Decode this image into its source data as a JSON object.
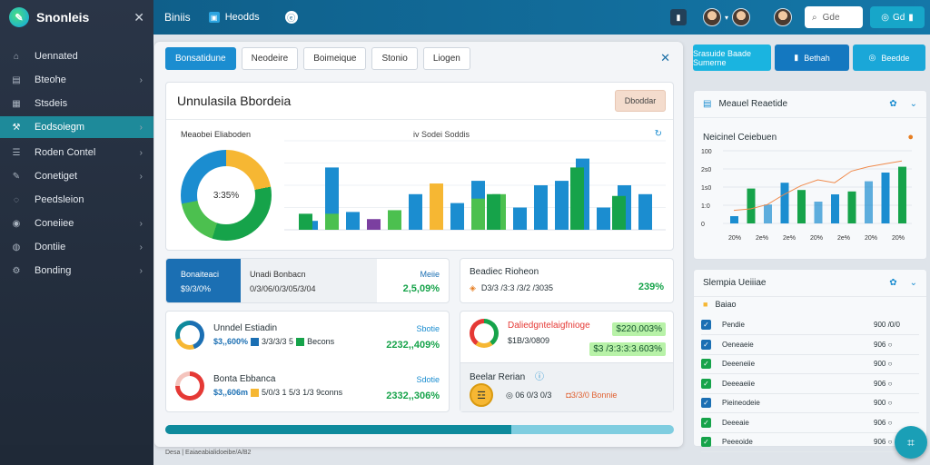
{
  "app": {
    "name": "Snonleis",
    "close": "✕",
    "logo": "✎"
  },
  "sidebar": {
    "items": [
      {
        "label": "Uennated",
        "icon": "home-icon",
        "glyph": "⌂",
        "chev": ""
      },
      {
        "label": "Bteohe",
        "icon": "layers-icon",
        "glyph": "▤",
        "chev": "›"
      },
      {
        "label": "Stsdeis",
        "icon": "grid-icon",
        "glyph": "▦",
        "chev": ""
      },
      {
        "label": "Eodsoiegm",
        "icon": "analytics-icon",
        "glyph": "⚒",
        "chev": "›"
      },
      {
        "label": "Roden Contel",
        "icon": "list-icon",
        "glyph": "☰",
        "chev": "›"
      },
      {
        "label": "Conetiget",
        "icon": "tag-icon",
        "glyph": "✎",
        "chev": "›"
      },
      {
        "label": "Peedsleion",
        "icon": "chat-icon",
        "glyph": "◌",
        "chev": ""
      },
      {
        "label": "Coneiiee",
        "icon": "target-icon",
        "glyph": "◉",
        "chev": "›"
      },
      {
        "label": "Dontiie",
        "icon": "globe-icon",
        "glyph": "◍",
        "chev": "›"
      },
      {
        "label": "Bonding",
        "icon": "gear-icon",
        "glyph": "⚙",
        "chev": "›"
      }
    ]
  },
  "topbar": {
    "title": "Biniis",
    "tab": "Heodds",
    "dot": "ⓔ",
    "search": "Gde",
    "search_glyph": "⌕",
    "btn": "Gd",
    "btn_glyph": "◎",
    "bell": "▮"
  },
  "main": {
    "tabs": [
      "Bonsatidune",
      "Neodeire",
      "Boimeique",
      "Stonio",
      "Liogen"
    ],
    "close": "✕",
    "chart_title": "Unnulasila Bbordeia",
    "chart_button": "Dboddar",
    "chart_sub": "Meaobei Eliaboden",
    "legend": "iv   Sodei   Soddis",
    "refresh": "↻",
    "donut_center": "3:35%",
    "chart_data": {
      "type": "bar",
      "series": [
        {
          "color": "#1b8dd0",
          "values": [
            10,
            70,
            20,
            0,
            5,
            40,
            0,
            30,
            55,
            30,
            25,
            50,
            55,
            80,
            25,
            50,
            40
          ]
        },
        {
          "color": "#4cc04f",
          "values": [
            0,
            18,
            0,
            0,
            22,
            0,
            0,
            0,
            35,
            40,
            0,
            0,
            0,
            0,
            0,
            0,
            0
          ]
        },
        {
          "color": "#f6b733",
          "values": [
            0,
            0,
            0,
            0,
            0,
            0,
            52,
            0,
            0,
            0,
            0,
            0,
            0,
            0,
            0,
            0,
            0
          ]
        },
        {
          "color": "#7b3fa0",
          "values": [
            0,
            0,
            0,
            12,
            0,
            0,
            0,
            0,
            0,
            0,
            0,
            0,
            0,
            0,
            0,
            0,
            0
          ]
        },
        {
          "color": "#16a34a",
          "values": [
            18,
            0,
            0,
            0,
            0,
            0,
            0,
            0,
            0,
            40,
            0,
            0,
            0,
            70,
            0,
            38,
            0
          ]
        }
      ],
      "ylim": [
        0,
        100
      ]
    },
    "stat1": {
      "head": "Bonaiteaci",
      "val": "$9/3/0%",
      "mid_head": "Unadi Bonbacn",
      "mid_val": "0/3/06/0/3/05/3/04",
      "r_head": "Meiie",
      "r_val": "2,5,09%"
    },
    "stat2": {
      "head": "Beadiec Rioheon",
      "glyph": "◈",
      "val": "D3/3 /3:3 /3/2 /3035",
      "pct": "239%"
    },
    "stat3": {
      "a_title": "Unndel Estiadin",
      "a_val": "$3,,600%",
      "a_mid": "3/3/3/3 5",
      "a_mid2": "Becons",
      "a_rhead": "Sbotie",
      "a_r": "2232,,409%",
      "b_title": "Bonta Ebbanca",
      "b_val": "$3,,606m",
      "b_mid": "5/0/3 1 5/3 1/3 9conns",
      "b_rhead": "Sdotie",
      "b_r": "2332,,306%"
    },
    "stat4": {
      "a_title": "Daliedgntelaigfnioge",
      "a_val": "$1B/3/0809",
      "a_hl": "$220,003%",
      "a_hl2": "$3 /3:3:3:3.603%",
      "b_title": "Beelar Rerian",
      "b_info": "ⓘ",
      "b_coin": "☲",
      "b_v1": "◎ 06 0/3 0/3",
      "b_v2": "◘3/3/0 Bonnie"
    },
    "progress": 0.68,
    "status": "Desa | Eaiaeabialidoeibe/A/B2"
  },
  "right": {
    "buttons": [
      {
        "label": "Srasuide Baade Sumerne",
        "glyph": "",
        "color": "#1ab4e0"
      },
      {
        "label": "Bethah",
        "glyph": "▮",
        "color": "#1478c0"
      },
      {
        "label": "Beedde",
        "glyph": "◎",
        "color": "#1aa7d8"
      }
    ],
    "panel1": {
      "title": "Meauel Reaetide",
      "glyph": "▤",
      "tool1": "✿",
      "tool2": "⌄",
      "chart_title": "Neicinel Ceiebuen",
      "dot": "●",
      "chart_data": {
        "type": "bar",
        "y_ticks": [
          "100",
          "2s0",
          "1s0",
          "1:0",
          "0"
        ],
        "x_ticks": [
          "20%",
          "2e%",
          "2e%",
          "20%",
          "2e%",
          "20%",
          "20%"
        ],
        "bars": [
          10,
          48,
          26,
          56,
          46,
          30,
          40,
          44,
          58,
          70,
          78
        ],
        "line": [
          18,
          20,
          26,
          40,
          52,
          60,
          56,
          72,
          78,
          82,
          86
        ]
      }
    },
    "panel2": {
      "title": "Slempia Ueiiiae",
      "tool1": "✿",
      "tool2": "⌄",
      "label": "Baiao",
      "label_glyph": "■",
      "rows": [
        {
          "label": "Pendie",
          "val": "900 /0/0",
          "state": "blue"
        },
        {
          "label": "Oeneaeie",
          "val": "906   ○",
          "state": "blue"
        },
        {
          "label": "Deeeneiie",
          "val": "900   ○",
          "state": "green"
        },
        {
          "label": "Deeeaeiie",
          "val": "906   ○",
          "state": "green"
        },
        {
          "label": "Pieineodeie",
          "val": "900   ○",
          "state": "blue"
        },
        {
          "label": "Deeeaie",
          "val": "906   ○",
          "state": "green"
        },
        {
          "label": "Peeeoide",
          "val": "906   ○",
          "state": "green"
        }
      ]
    },
    "fab": "⌗"
  }
}
